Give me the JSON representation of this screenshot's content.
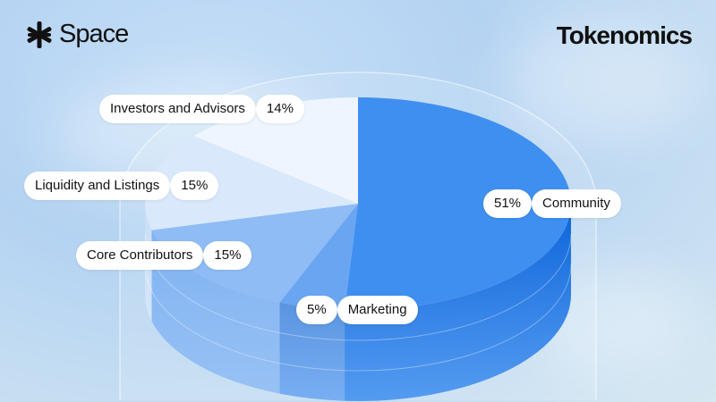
{
  "brand": {
    "name": "Space",
    "icon": "asterisk-star-icon"
  },
  "title": "Tokenomics",
  "chart_data": {
    "type": "pie",
    "style": "3d-cylinder",
    "title": "Tokenomics",
    "slices": [
      {
        "label": "Community",
        "value": 51,
        "display": "51%",
        "color": "#3f8ff0",
        "side": "#0b63d9"
      },
      {
        "label": "Marketing",
        "value": 5,
        "display": "5%",
        "color": "#6aa5f2",
        "side": "#5a94e0"
      },
      {
        "label": "Core Contributors",
        "value": 15,
        "display": "15%",
        "color": "#8fbcf4",
        "side": "#7fb2f2"
      },
      {
        "label": "Liquidity and Listings",
        "value": 15,
        "display": "15%",
        "color": "#d9e8fb",
        "side": "#c8ddf7"
      },
      {
        "label": "Investors and Advisors",
        "value": 14,
        "display": "14%",
        "color": "#eef5fe",
        "side": "#e0ecfb"
      }
    ]
  }
}
